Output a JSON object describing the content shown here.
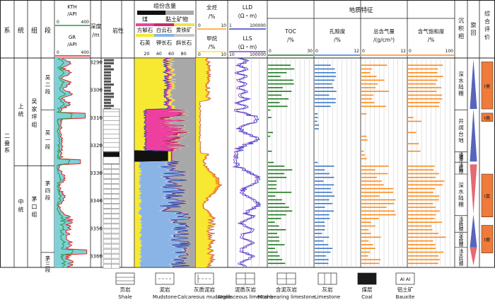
{
  "header": {
    "system": "系",
    "series": "统",
    "group": "组",
    "segment": "段",
    "kth_label": "KTH",
    "kth_unit": "/API",
    "kth_min": "0",
    "kth_max": "400",
    "gr_label": "GR",
    "gr_unit": "/API",
    "gr_min": "0",
    "gr_max": "400",
    "depth_label": "深度",
    "depth_unit": "/m",
    "lithology": "岩性",
    "composition_title": "组份含量",
    "comp_leg_row1": [
      "煤",
      "黏土矿物"
    ],
    "comp_leg_row2": [
      "方解石",
      "白云石",
      "黄铁矿"
    ],
    "comp_leg_row3": [
      "石英",
      "钾长石",
      "斜长石"
    ],
    "comp_ticks": [
      "20",
      "40",
      "60",
      "80"
    ],
    "total_hc_label": "全烃",
    "total_hc_unit": "/%",
    "total_hc_min": "0",
    "total_hc_max": "10",
    "methane_label": "甲烷",
    "methane_unit": "/%",
    "methane_min": "0",
    "methane_max": "10",
    "lld_label": "LLD",
    "lld_unit": "(Ω・m)",
    "lld_min": "1",
    "lld_max": "100000",
    "lls_label": "LLS",
    "lls_unit": "(Ω・m)",
    "lls_min": "10",
    "lls_max": "100000",
    "geo_title": "地质特征",
    "toc_label": "TOC",
    "toc_unit": "/%",
    "toc_min": "0",
    "toc_max": "30",
    "por_label": "孔隙度",
    "por_unit": "/%",
    "por_min": "0",
    "por_max": "12",
    "gas_label": "总含气量",
    "gas_unit": "/(g/cm³)",
    "gas_min": "0",
    "gas_max": "12",
    "sat_label": "含气饱和度",
    "sat_unit": "/%",
    "sat_min": "0",
    "sat_max": "100",
    "facies": "沉积相",
    "cycle": "旋回",
    "evaluation": "综合评价"
  },
  "strata": {
    "system": "二叠系",
    "series_upper": "上统",
    "series_middle": "中统",
    "group_wujiaping": "吴家坪组",
    "group_maokou": "茅口组",
    "seg_wu2": "吴二段",
    "seg_wu1": "吴一段",
    "seg_mao4": "茅四段",
    "seg_mao3": "茅三段"
  },
  "depth_ticks": [
    "3290",
    "3300",
    "3310",
    "3320",
    "3330",
    "3340",
    "3350",
    "3360"
  ],
  "facies": [
    "深水陆棚",
    "开阔台地",
    "浅滩沼泽",
    "浅水陆棚",
    "深水陆棚",
    "浅水陆棚",
    "深水陆棚",
    "浅水陆棚"
  ],
  "evaluation": [
    "Ⅰ类",
    "Ⅰ类",
    "Ⅰ类",
    "Ⅰ类"
  ],
  "legend": [
    {
      "zh": "页岩",
      "en": "Shale"
    },
    {
      "zh": "泥岩",
      "en": "Mudstone"
    },
    {
      "zh": "灰质泥岩",
      "en": "Calcareous mudstone"
    },
    {
      "zh": "泥质灰岩",
      "en": "Argillaceous limestone"
    },
    {
      "zh": "含泥灰岩",
      "en": "Mud-bearing limestone"
    },
    {
      "zh": "灰岩",
      "en": "Limestone"
    },
    {
      "zh": "煤层",
      "en": "Coal"
    },
    {
      "zh": "铝土矿",
      "en": "Bauxite"
    }
  ],
  "bauxite_symbol": "Al  Al",
  "colors": {
    "gr": "#e02020",
    "kth": "#2a9a3a",
    "gr_fill": "#7fd0d8",
    "clay": "#a8a8a8",
    "calcite": "#ee3fa0",
    "dolomite": "#c22d6a",
    "pyrite": "#f3e24a",
    "quartz": "#f7e832",
    "kfeldspar": "#8ab4e6",
    "plagioclase": "#c8c8c8",
    "total_hc": "#ff9c1a",
    "methane": "#f7e832",
    "lld": "#3540c8",
    "lls": "#8840c8",
    "toc": "#1f7a20",
    "porosity": "#3c78c8",
    "gas": "#ff8a1a",
    "saturation": "#ff8a1a",
    "eval": "#f07a3a"
  }
}
